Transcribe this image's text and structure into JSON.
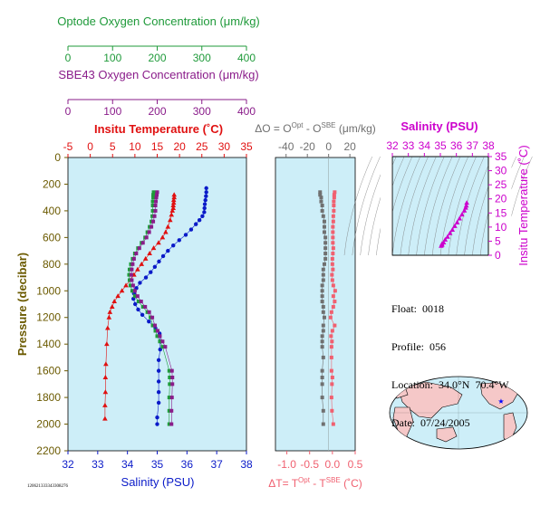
{
  "colors": {
    "optode": "#1f9a3a",
    "sbe": "#8a1c8a",
    "temperature": "#e01010",
    "salinity": "#0a1ac8",
    "salinity_axis": "#cc00cc",
    "diff_o": "#707070",
    "diff_t": "#f06070",
    "pressure": "#6b5a00",
    "panel_bg": "#cdeef8"
  },
  "info": {
    "float_label": "Float:",
    "float_value": "0018",
    "profile_label": "Profile:",
    "profile_value": "056",
    "location_label": "Location:",
    "location_value": "34.0°N  70.4°W",
    "date_label": "Date:",
    "date_value": "07/24/2005"
  },
  "id_tag": "120621333343308276",
  "chart_data": [
    {
      "type": "line",
      "name": "main-profile",
      "title_top_optode": "Optode Oxygen Concentration (μm/kg)",
      "title_top_sbe": "SBE43 Oxygen Concentration (μm/kg)",
      "title_temperature": "Insitu Temperature (˚C)",
      "xlabel": "Salinity (PSU)",
      "ylabel": "Pressure (decibar)",
      "oxygen_ticks": [
        "0",
        "100",
        "200",
        "300",
        "400"
      ],
      "oxygen_lim": [
        0,
        400
      ],
      "temperature_ticks": [
        "-5",
        "0",
        "5",
        "10",
        "15",
        "20",
        "25",
        "30",
        "35"
      ],
      "temperature_lim": [
        -5,
        35
      ],
      "salinity_ticks": [
        "32",
        "33",
        "34",
        "35",
        "36",
        "37",
        "38"
      ],
      "salinity_lim": [
        32,
        38
      ],
      "pressure_ticks": [
        "0",
        "200",
        "400",
        "600",
        "800",
        "1000",
        "1200",
        "1400",
        "1600",
        "1800",
        "2000",
        "2200"
      ],
      "pressure_lim": [
        0,
        2200
      ],
      "series": [
        {
          "key": "temperature",
          "pressure": [
            280,
            300,
            320,
            340,
            360,
            380,
            400,
            430,
            470,
            520,
            560,
            600,
            640,
            680,
            720,
            760,
            800,
            840,
            880,
            920,
            960,
            1000,
            1040,
            1080,
            1120,
            1160,
            1200,
            1280,
            1400,
            1550,
            1650,
            1760,
            1860,
            1960
          ],
          "values": [
            18.8,
            18.8,
            18.7,
            18.7,
            18.6,
            18.6,
            18.4,
            18.2,
            17.9,
            17.4,
            16.9,
            16.2,
            15.3,
            14.2,
            13.3,
            12.4,
            11.5,
            10.6,
            9.8,
            9.0,
            8.0,
            7.1,
            6.2,
            5.4,
            4.9,
            4.4,
            4.2,
            3.9,
            3.7,
            3.5,
            3.4,
            3.4,
            3.3,
            3.3
          ]
        },
        {
          "key": "salinity",
          "pressure": [
            230,
            260,
            290,
            320,
            350,
            380,
            410,
            440,
            470,
            500,
            540,
            580,
            620,
            660,
            700,
            740,
            780,
            820,
            860,
            900,
            940,
            980,
            1020,
            1060,
            1100,
            1140,
            1180,
            1230,
            1280,
            1320,
            1380,
            1440,
            1520,
            1600,
            1680,
            1760,
            1840,
            1950,
            2000
          ],
          "values": [
            36.65,
            36.65,
            36.64,
            36.62,
            36.6,
            36.59,
            36.58,
            36.52,
            36.42,
            36.3,
            36.14,
            35.96,
            35.74,
            35.54,
            35.36,
            35.2,
            35.06,
            34.92,
            34.78,
            34.62,
            34.42,
            34.3,
            34.22,
            34.2,
            34.26,
            34.36,
            34.5,
            34.72,
            34.94,
            35.08,
            35.1,
            35.1,
            35.05,
            35.05,
            35.05,
            35.05,
            35.05,
            35.0,
            35.0
          ]
        },
        {
          "key": "optode",
          "pressure": [
            260,
            280,
            300,
            330,
            360,
            400,
            440,
            480,
            520,
            560,
            600,
            640,
            680,
            720,
            760,
            800,
            840,
            880,
            920,
            960,
            1000,
            1040,
            1080,
            1120,
            1160,
            1200,
            1260,
            1300,
            1340,
            1380,
            1420,
            1600,
            1650,
            1700,
            1800,
            1900,
            2000
          ],
          "oxygen": [
            192,
            191,
            191,
            190,
            190,
            190,
            189,
            187,
            183,
            178,
            173,
            165,
            157,
            150,
            145,
            141,
            138,
            137,
            138,
            140,
            144,
            150,
            158,
            168,
            178,
            185,
            190,
            196,
            200,
            206,
            212,
            227,
            228,
            228,
            227,
            227,
            227
          ]
        },
        {
          "key": "sbe",
          "pressure": [
            260,
            280,
            300,
            330,
            360,
            400,
            440,
            480,
            520,
            560,
            600,
            640,
            680,
            720,
            760,
            800,
            840,
            880,
            920,
            960,
            1000,
            1040,
            1080,
            1120,
            1160,
            1200,
            1260,
            1300,
            1340,
            1380,
            1420,
            1600,
            1650,
            1700,
            1800,
            1900,
            2000
          ],
          "oxygen": [
            200,
            199,
            198,
            197,
            196,
            196,
            194,
            191,
            187,
            182,
            176,
            168,
            160,
            153,
            148,
            145,
            143,
            142,
            143,
            146,
            150,
            156,
            164,
            173,
            182,
            189,
            195,
            201,
            206,
            212,
            218,
            233,
            234,
            234,
            233,
            232,
            232
          ]
        }
      ]
    },
    {
      "type": "scatter",
      "name": "difference-profile",
      "title": "ΔO = O^Opt - O^SBE (μm/kg)",
      "xlabel": "ΔT= T^Opt - T^SBE (˚C)",
      "o_ticks": [
        "-40",
        "-20",
        "0",
        "20"
      ],
      "o_lim": [
        -50,
        25
      ],
      "t_ticks": [
        "-1.0",
        "-0.5",
        "0.0",
        "0.5"
      ],
      "t_lim": [
        -1.25,
        0.5
      ],
      "series": [
        {
          "key": "diff_o",
          "pressure": [
            260,
            280,
            300,
            330,
            360,
            400,
            440,
            480,
            520,
            560,
            600,
            640,
            680,
            720,
            760,
            800,
            840,
            880,
            920,
            960,
            1000,
            1040,
            1080,
            1120,
            1160,
            1200,
            1260,
            1300,
            1340,
            1380,
            1420,
            1500,
            1600,
            1650,
            1700,
            1800,
            1900,
            2000
          ],
          "values": [
            -8,
            -8,
            -7,
            -7,
            -6,
            -6,
            -5,
            -4,
            -4,
            -4,
            -3,
            -3,
            -3,
            -3,
            -3,
            -4,
            -5,
            -5,
            -5,
            -6,
            -6,
            -6,
            -6,
            -5,
            -5,
            -4,
            -5,
            -5,
            -6,
            -6,
            -6,
            -5,
            -6,
            -6,
            -6,
            -6,
            -5,
            -5
          ]
        },
        {
          "key": "diff_t",
          "pressure": [
            260,
            280,
            300,
            330,
            360,
            400,
            440,
            480,
            520,
            560,
            600,
            640,
            680,
            720,
            760,
            800,
            840,
            880,
            920,
            960,
            1000,
            1040,
            1080,
            1120,
            1160,
            1200,
            1260,
            1300,
            1340,
            1380,
            1420,
            1500,
            1600,
            1650,
            1700,
            1800,
            1900,
            2000
          ],
          "values": [
            0.05,
            0.04,
            0.04,
            0.03,
            0.03,
            0.03,
            0.02,
            0.02,
            0.01,
            0.01,
            0.01,
            0.01,
            0.02,
            0.01,
            0.0,
            0.0,
            0.01,
            -0.01,
            0.0,
            0.02,
            0.06,
            0.02,
            0.05,
            0.02,
            -0.02,
            -0.04,
            0.05,
            0.0,
            -0.03,
            -0.01,
            -0.02,
            -0.02,
            -0.02,
            0.0,
            -0.01,
            -0.02,
            -0.01,
            0.02
          ]
        }
      ]
    },
    {
      "type": "scatter",
      "name": "ts-diagram",
      "title": "Salinity (PSU)",
      "ylabel": "Insitu Temperature (˚C)",
      "salinity_ticks": [
        "32",
        "33",
        "34",
        "35",
        "36",
        "37",
        "38"
      ],
      "salinity_lim": [
        32,
        38
      ],
      "temperature_ticks": [
        "0",
        "5",
        "10",
        "15",
        "20",
        "25",
        "30",
        "35"
      ],
      "temperature_lim": [
        0,
        35
      ],
      "points_salinity": [
        35.05,
        35.1,
        35.1,
        35.2,
        35.3,
        35.45,
        35.6,
        35.75,
        35.9,
        36.05,
        36.2,
        36.35,
        36.5,
        36.58,
        36.62,
        36.65
      ],
      "points_temperature": [
        3.3,
        3.6,
        4.0,
        4.5,
        5.5,
        6.5,
        7.8,
        9.0,
        10.3,
        11.6,
        13.0,
        14.4,
        15.8,
        16.8,
        17.6,
        18.6
      ]
    }
  ]
}
